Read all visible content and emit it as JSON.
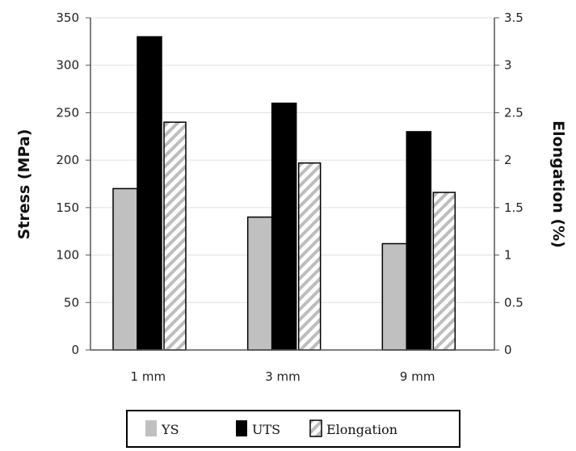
{
  "chart_data": {
    "type": "bar",
    "title": "",
    "xlabel": "",
    "categories": [
      "1 mm",
      "3 mm",
      "9 mm"
    ],
    "ylabel": "Stress (MPa)",
    "ylim": [
      0,
      350
    ],
    "yticks": [
      "0",
      "50",
      "100",
      "150",
      "200",
      "250",
      "300",
      "350"
    ],
    "y2label": "Elongation (%)",
    "y2lim": [
      0,
      3.5
    ],
    "y2ticks": [
      "0",
      "0.5",
      "1",
      "1.5",
      "2",
      "2.5",
      "3",
      "3.5"
    ],
    "grid": true,
    "legend_position": "bottom",
    "series": [
      {
        "name": "YS",
        "axis": "left",
        "values": [
          170,
          140,
          112
        ],
        "color": "#c0c0c0",
        "pattern": "solid"
      },
      {
        "name": "UTS",
        "axis": "left",
        "values": [
          330,
          260,
          230
        ],
        "color": "#000000",
        "pattern": "solid"
      },
      {
        "name": "Elongation",
        "axis": "right",
        "values": [
          2.4,
          1.97,
          1.66
        ],
        "color": "#ffffff",
        "pattern": "hatched"
      }
    ]
  }
}
